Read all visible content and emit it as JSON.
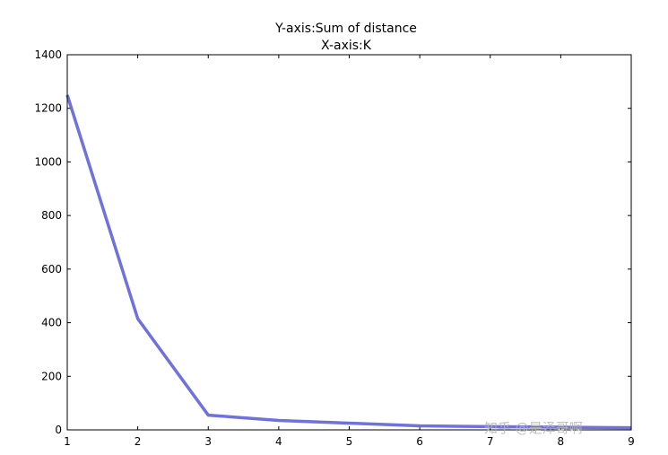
{
  "chart_data": {
    "type": "line",
    "title_lines": [
      "Y-axis:Sum of distance",
      "X-axis:K"
    ],
    "xlabel": "",
    "ylabel": "",
    "x": [
      1,
      2,
      3,
      4,
      5,
      6,
      7,
      8,
      9
    ],
    "series": [
      {
        "values": [
          1250,
          415,
          55,
          35,
          25,
          15,
          12,
          10,
          8
        ],
        "color": "#5f63d8"
      }
    ],
    "xlim": [
      1,
      9
    ],
    "ylim": [
      0,
      1400
    ],
    "xticks": [
      1,
      2,
      3,
      4,
      5,
      6,
      7,
      8,
      9
    ],
    "yticks": [
      0,
      200,
      400,
      600,
      800,
      1000,
      1200,
      1400
    ],
    "grid": false,
    "legend": "none"
  },
  "watermark": {
    "text": "知乎 @是泽哥啊"
  }
}
